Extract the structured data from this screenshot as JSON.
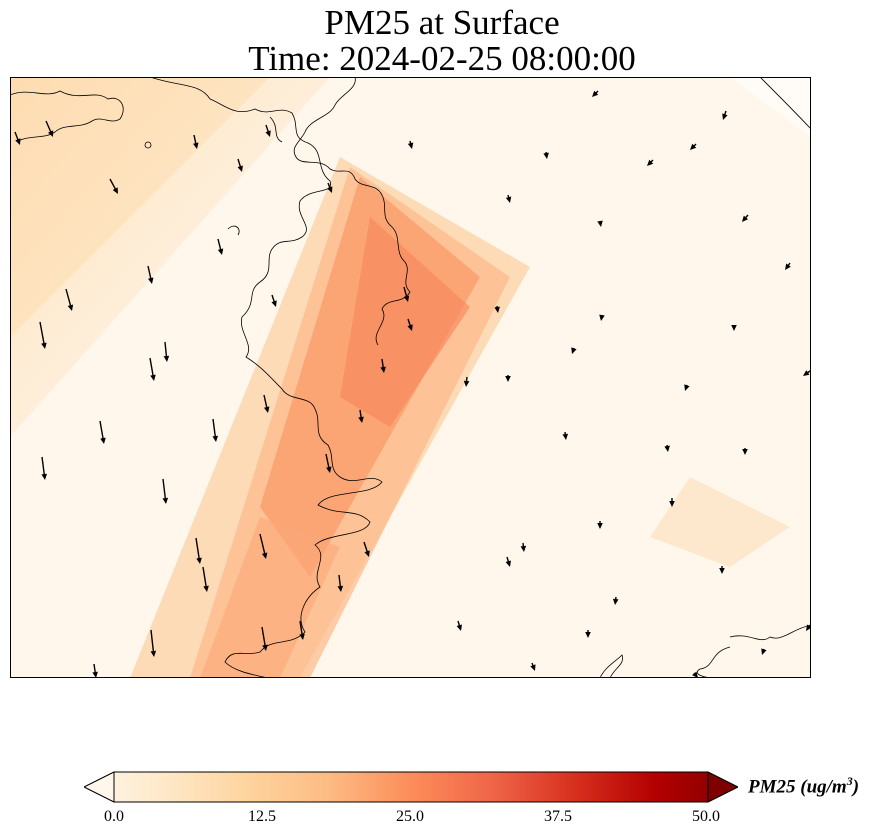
{
  "title_line1": "PM25 at Surface",
  "title_line2": "Time: 2024-02-25 08:00:00",
  "colorbar": {
    "label_text": "PM25 (ug/m",
    "label_sup": "3",
    "label_close": ")",
    "ticks": [
      "0.0",
      "12.5",
      "25.0",
      "37.5",
      "50.0"
    ],
    "vmin": 0,
    "vmax": 50,
    "colormap": "OrRd",
    "colors": [
      "#fff7ec",
      "#fee8c8",
      "#fdd49e",
      "#fdbb84",
      "#fc8d59",
      "#ef6548",
      "#d7301f",
      "#b30000",
      "#7f0000"
    ]
  },
  "map": {
    "frame_color": "#000000",
    "background": "#fff4e6"
  }
}
